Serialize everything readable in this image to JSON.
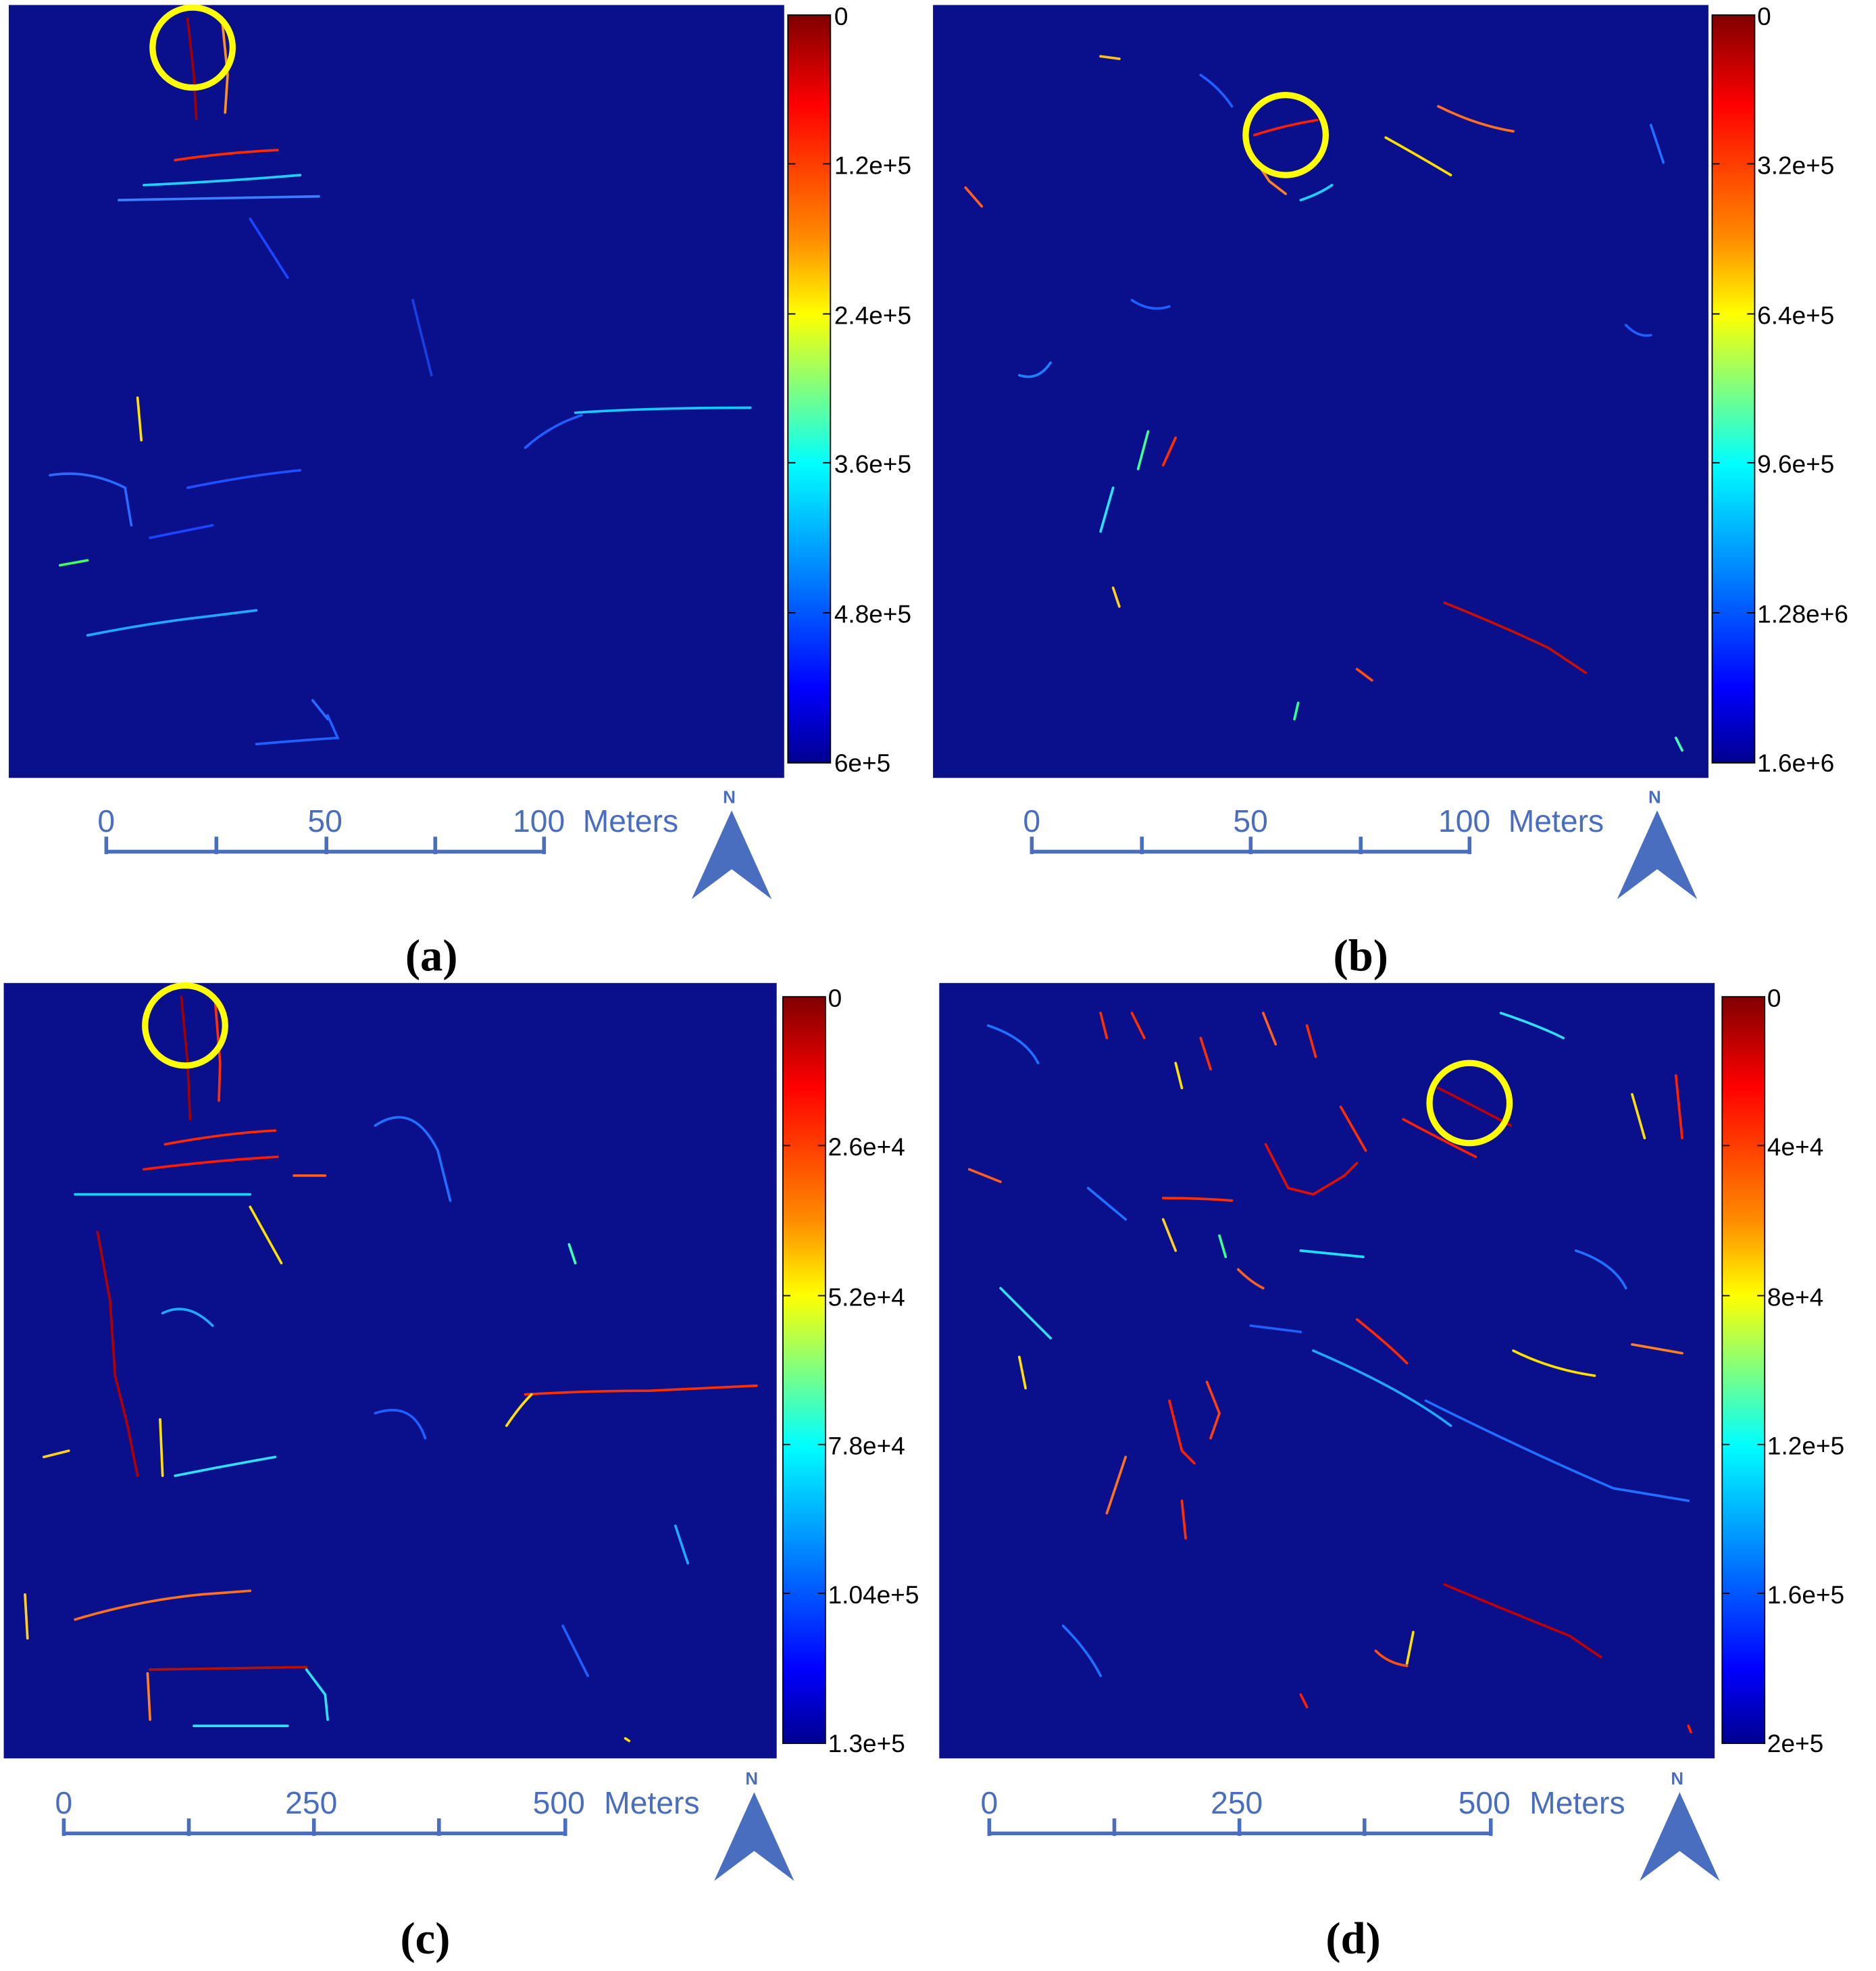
{
  "panels": [
    {
      "label": "(a)",
      "colorbar_ticks": [
        "0",
        "1.2e+5",
        "2.4e+5",
        "3.6e+5",
        "4.8e+5",
        "6e+5"
      ],
      "scale_ticks": [
        "0",
        "50",
        "100"
      ],
      "scale_unit": "Meters",
      "north_label": "N",
      "highlight": "yellow circle at top-left edge segment"
    },
    {
      "label": "(b)",
      "colorbar_ticks": [
        "0",
        "3.2e+5",
        "6.4e+5",
        "9.6e+5",
        "1.28e+6",
        "1.6e+6"
      ],
      "scale_ticks": [
        "0",
        "50",
        "100"
      ],
      "scale_unit": "Meters",
      "north_label": "N",
      "highlight": "yellow circle at upper-middle edge segment"
    },
    {
      "label": "(c)",
      "colorbar_ticks": [
        "0",
        "2.6e+4",
        "5.2e+4",
        "7.8e+4",
        "1.04e+5",
        "1.3e+5"
      ],
      "scale_ticks": [
        "0",
        "250",
        "500"
      ],
      "scale_unit": "Meters",
      "north_label": "N",
      "highlight": "yellow circle at top-left edge segment"
    },
    {
      "label": "(d)",
      "colorbar_ticks": [
        "0",
        "4e+4",
        "8e+4",
        "1.2e+5",
        "1.6e+5",
        "2e+5"
      ],
      "scale_ticks": [
        "0",
        "250",
        "500"
      ],
      "scale_unit": "Meters",
      "north_label": "N",
      "highlight": "yellow circle at upper-right edge segment"
    }
  ],
  "colors": {
    "map_background": "#0a0f8c",
    "circle": "#ffff00",
    "scalebar": "#4a6ebf",
    "north_arrow": "#4a6ebf",
    "colormap": "jet (dark red at 0, dark blue at max)"
  }
}
